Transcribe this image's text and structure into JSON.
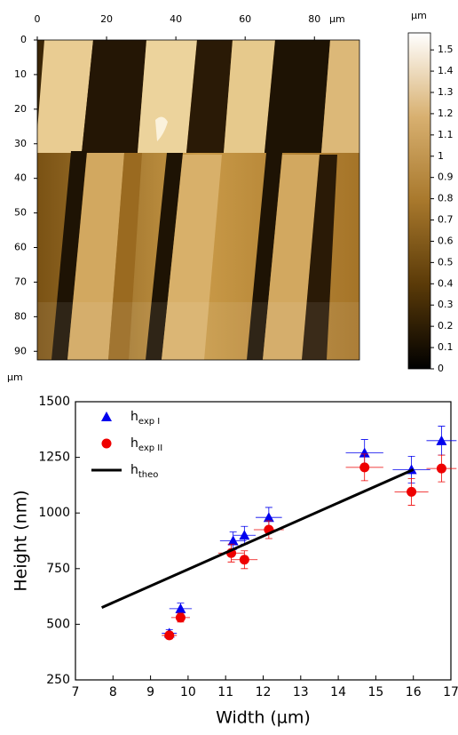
{
  "chart_data": [
    {
      "type": "heatmap",
      "x_unit": "µm",
      "y_unit": "µm",
      "xlim": [
        0,
        93
      ],
      "xticks": [
        0,
        20,
        40,
        60,
        80
      ],
      "ylim": [
        0,
        92.5
      ],
      "yticks": [
        0,
        10,
        20,
        30,
        40,
        50,
        60,
        70,
        80,
        90
      ],
      "colorbar": {
        "label": "µm",
        "lim": [
          0,
          1.58
        ],
        "ticks": [
          0,
          0.1,
          0.2,
          0.3,
          0.4,
          0.5,
          0.6,
          0.7,
          0.8,
          0.9,
          1,
          1.1,
          1.2,
          1.3,
          1.4,
          1.5
        ],
        "colors": [
          "#000000",
          "#5a3a08",
          "#a8782c",
          "#d8b070",
          "#ffffff"
        ]
      }
    },
    {
      "type": "scatter",
      "xlabel": "Width (µm)",
      "ylabel": "Height (nm)",
      "xlim": [
        7,
        17
      ],
      "xticks": [
        7,
        8,
        9,
        10,
        11,
        12,
        13,
        14,
        15,
        16,
        17
      ],
      "ylim": [
        250,
        1500
      ],
      "yticks": [
        250,
        500,
        750,
        1000,
        1250,
        1500
      ],
      "series": [
        {
          "name": "h",
          "name_sub": "exp I",
          "color": "#0000ee",
          "marker": "triangle",
          "x": [
            9.5,
            9.8,
            11.2,
            11.5,
            12.15,
            14.7,
            15.95,
            16.75
          ],
          "values": [
            460,
            570,
            875,
            900,
            980,
            1270,
            1195,
            1325
          ],
          "x_errors": [
            0.2,
            0.3,
            0.35,
            0.3,
            0.35,
            0.5,
            0.5,
            0.4
          ],
          "y_errors": [
            15,
            25,
            40,
            40,
            45,
            60,
            60,
            65
          ]
        },
        {
          "name": "h",
          "name_sub": "exp II",
          "color": "#ee0000",
          "marker": "circle",
          "x": [
            9.5,
            9.8,
            11.15,
            11.5,
            12.15,
            14.7,
            15.95,
            16.75
          ],
          "values": [
            450,
            530,
            820,
            790,
            925,
            1205,
            1095,
            1200
          ],
          "x_errors": [
            0.2,
            0.25,
            0.35,
            0.35,
            0.4,
            0.5,
            0.45,
            0.4
          ],
          "y_errors": [
            15,
            20,
            40,
            40,
            40,
            60,
            60,
            60
          ]
        },
        {
          "name": "h",
          "name_sub": "theo",
          "color": "#000000",
          "marker": "line",
          "x": [
            7.7,
            16
          ],
          "values": [
            575,
            1195
          ]
        }
      ]
    }
  ]
}
